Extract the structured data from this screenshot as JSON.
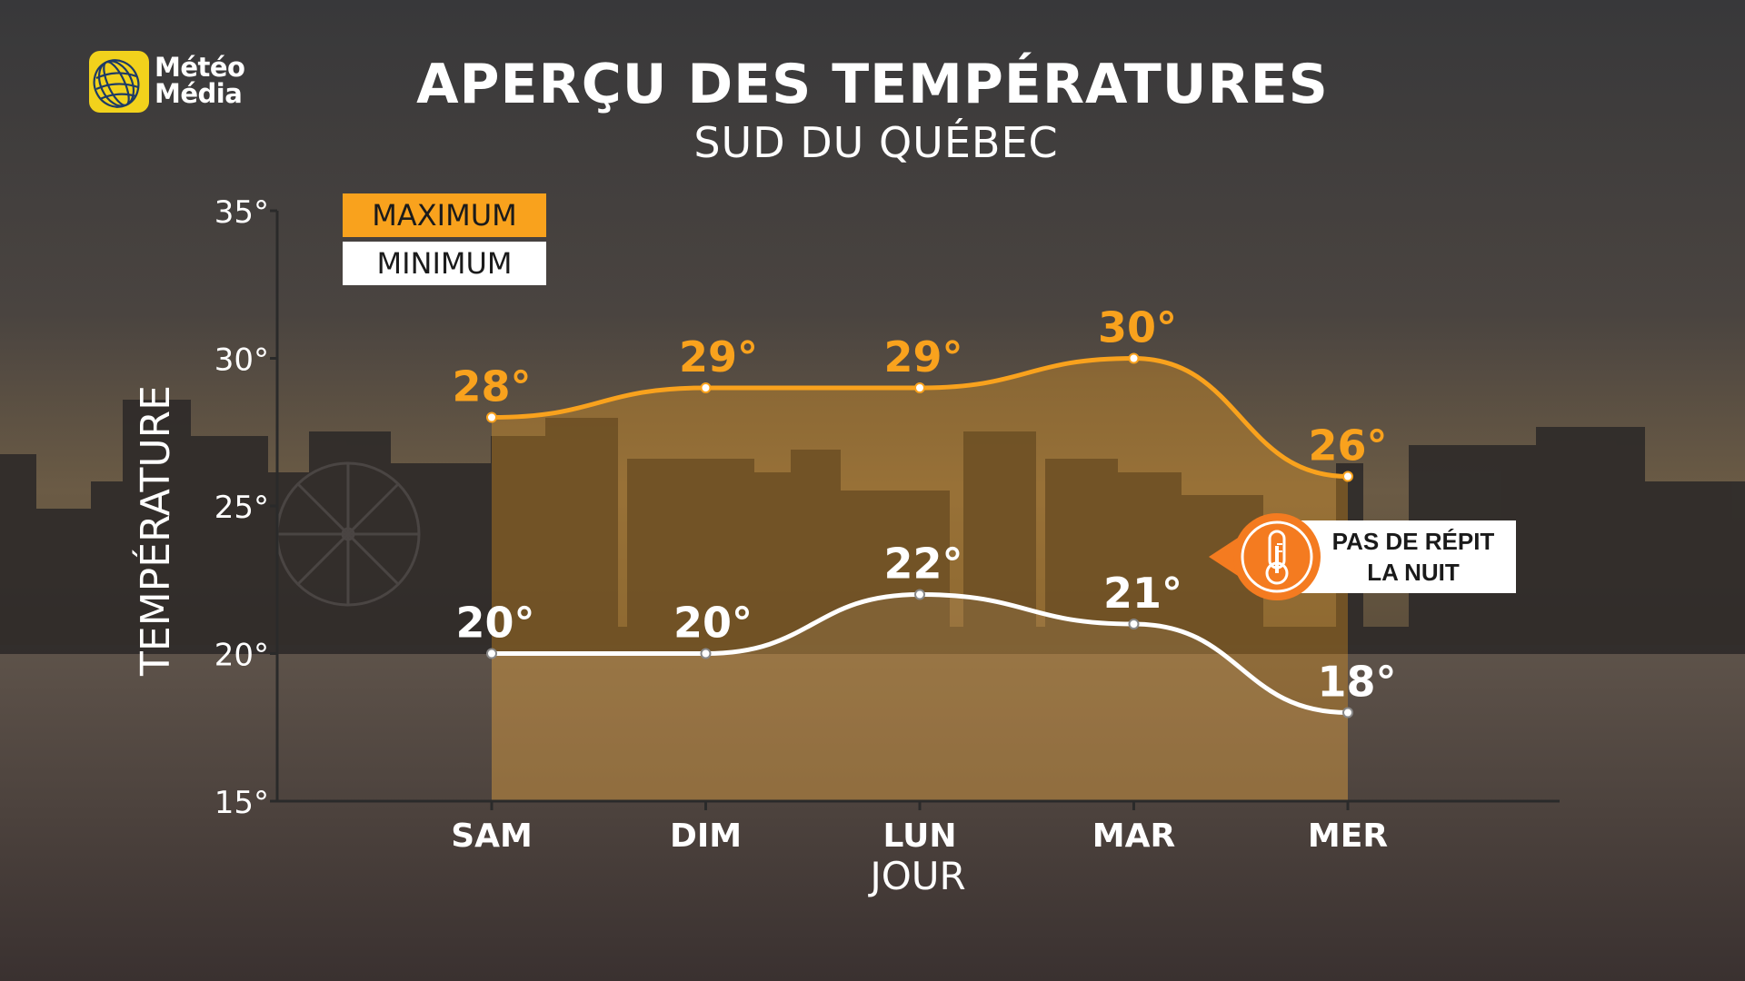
{
  "brand": {
    "line1": "Météo",
    "line2": "Média"
  },
  "title": "APERÇU DES TEMPÉRATURES",
  "subtitle": "SUD DU QUÉBEC",
  "legend": {
    "max": "MAXIMUM",
    "min": "MINIMUM"
  },
  "callout": {
    "line1": "PAS DE RÉPIT",
    "line2": "LA NUIT",
    "icon": "thermometer-icon"
  },
  "colors": {
    "max": "#f9a21d",
    "min": "#ffffff",
    "callout_accent": "#f47b20"
  },
  "chart_data": {
    "type": "line",
    "title": "APERÇU DES TEMPÉRATURES",
    "subtitle": "SUD DU QUÉBEC",
    "xlabel": "JOUR",
    "ylabel": "TEMPÉRATURE",
    "categories": [
      "SAM",
      "DIM",
      "LUN",
      "MAR",
      "MER"
    ],
    "ylim": [
      15,
      35
    ],
    "yticks": [
      "15°",
      "20°",
      "25°",
      "30°",
      "35°"
    ],
    "series": [
      {
        "name": "MAXIMUM",
        "values": [
          28,
          29,
          29,
          30,
          26
        ],
        "labels": [
          "28°",
          "29°",
          "29°",
          "30°",
          "26°"
        ]
      },
      {
        "name": "MINIMUM",
        "values": [
          20,
          20,
          22,
          21,
          18
        ],
        "labels": [
          "20°",
          "20°",
          "22°",
          "21°",
          "18°"
        ]
      }
    ],
    "grid": false,
    "legend_position": "top-left"
  }
}
